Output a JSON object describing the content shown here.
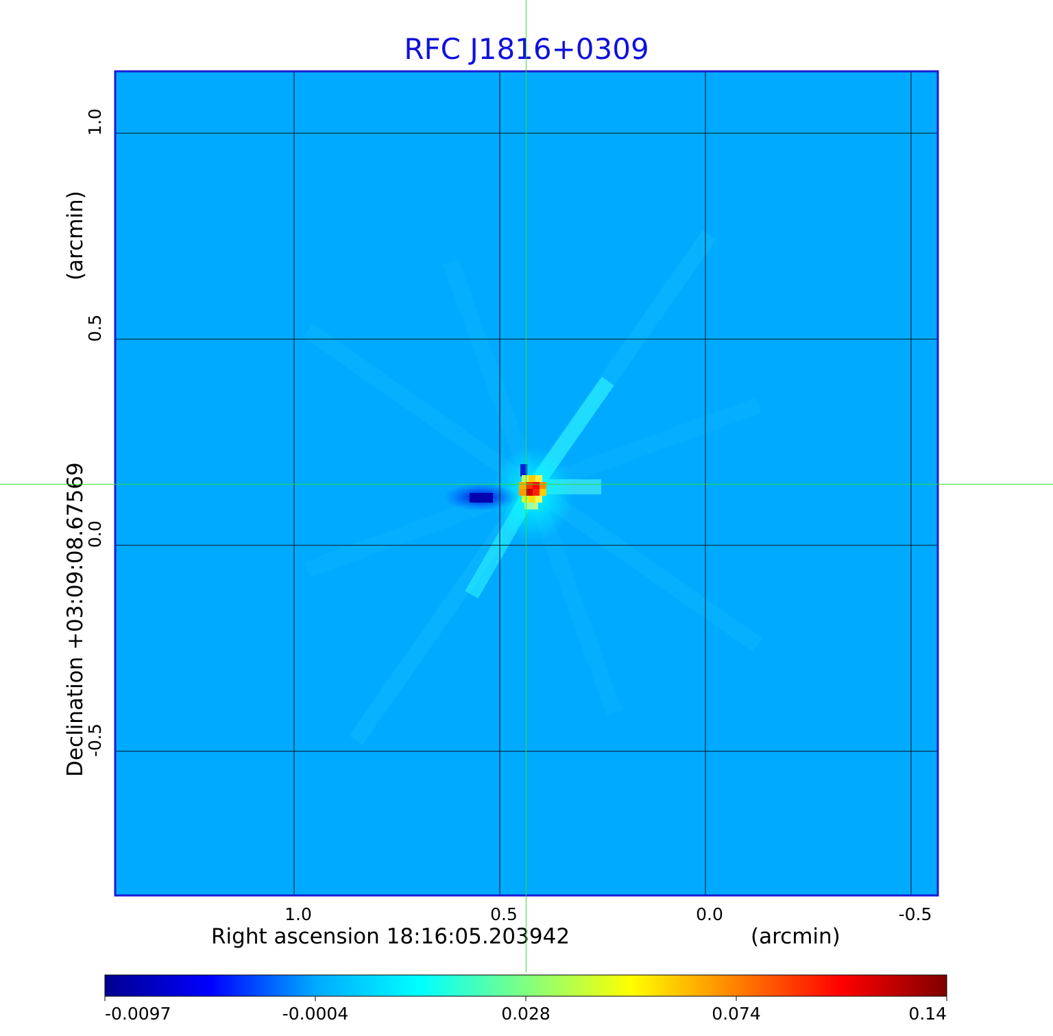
{
  "chart_data": {
    "type": "heatmap",
    "title": "RFC J1816+0309",
    "title_color": "#1010dd",
    "xlabel": "Right ascension  18:16:05.203942",
    "xlabel_unit": "(arcmin)",
    "ylabel": "Declination  +03:09:08.67569",
    "ylabel_unit": "(arcmin)",
    "x_axis_reversed": true,
    "xlim": [
      1.435,
      -0.565
    ],
    "ylim": [
      -0.85,
      1.15
    ],
    "xticks": [
      {
        "value": 1.0,
        "label": "1.0"
      },
      {
        "value": 0.5,
        "label": "0.5"
      },
      {
        "value": 0.0,
        "label": "0.0"
      },
      {
        "value": -0.5,
        "label": "-0.5"
      }
    ],
    "yticks": [
      {
        "value": 1.0,
        "label": "1.0"
      },
      {
        "value": 0.5,
        "label": "0.5"
      },
      {
        "value": 0.0,
        "label": "0.0"
      },
      {
        "value": -0.5,
        "label": "-0.5"
      }
    ],
    "grid": true,
    "crosshair": {
      "x": 0.436,
      "y": 0.148,
      "color": "#33dd33"
    },
    "background_color": "#00aaff",
    "source_peak": {
      "x": 0.42,
      "y": 0.14,
      "value": 0.14
    },
    "negative_lobe": {
      "x": 0.52,
      "y": 0.13,
      "value": -0.0097
    },
    "colorbar": {
      "ticks": [
        "-0.0097",
        "-0.0004",
        "0.028",
        "0.074",
        "0.14"
      ],
      "colors": [
        "#00008f",
        "#0000ff",
        "#00aaff",
        "#00ffff",
        "#80ff80",
        "#ffff00",
        "#ff8000",
        "#ff0000",
        "#800000"
      ]
    }
  }
}
